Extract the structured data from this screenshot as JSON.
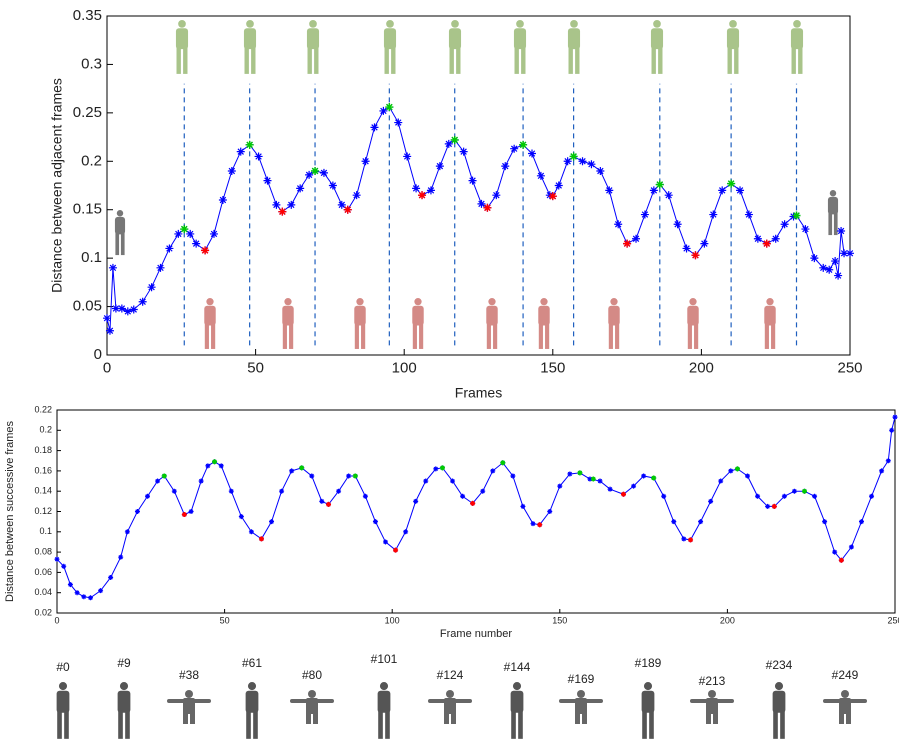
{
  "chart_data": [
    {
      "type": "line",
      "x_label": "Frames",
      "y_label": "Distance between adjacent frames",
      "x": [
        0,
        1,
        2,
        3,
        5,
        7,
        9,
        12,
        15,
        18,
        21,
        24,
        26,
        28,
        30,
        33,
        36,
        39,
        42,
        45,
        48,
        51,
        54,
        57,
        59,
        62,
        65,
        68,
        70,
        73,
        76,
        79,
        81,
        84,
        87,
        90,
        93,
        95,
        98,
        101,
        104,
        106,
        109,
        112,
        115,
        117,
        120,
        123,
        126,
        128,
        131,
        134,
        137,
        140,
        143,
        146,
        149,
        150,
        152,
        155,
        157,
        160,
        163,
        166,
        169,
        172,
        175,
        178,
        181,
        184,
        186,
        189,
        192,
        195,
        198,
        201,
        204,
        207,
        210,
        213,
        216,
        219,
        222,
        225,
        228,
        231,
        232,
        235,
        238,
        241,
        243,
        245,
        246,
        247,
        248,
        250
      ],
      "values": [
        0.038,
        0.025,
        0.09,
        0.048,
        0.048,
        0.045,
        0.047,
        0.055,
        0.07,
        0.09,
        0.11,
        0.125,
        0.13,
        0.125,
        0.115,
        0.108,
        0.125,
        0.16,
        0.19,
        0.21,
        0.217,
        0.205,
        0.18,
        0.155,
        0.148,
        0.155,
        0.172,
        0.186,
        0.19,
        0.188,
        0.175,
        0.155,
        0.15,
        0.165,
        0.2,
        0.235,
        0.252,
        0.256,
        0.24,
        0.205,
        0.172,
        0.165,
        0.17,
        0.195,
        0.218,
        0.222,
        0.21,
        0.18,
        0.156,
        0.152,
        0.165,
        0.195,
        0.213,
        0.217,
        0.208,
        0.185,
        0.165,
        0.164,
        0.175,
        0.2,
        0.205,
        0.2,
        0.197,
        0.19,
        0.17,
        0.135,
        0.115,
        0.12,
        0.145,
        0.17,
        0.176,
        0.165,
        0.135,
        0.11,
        0.103,
        0.115,
        0.145,
        0.17,
        0.177,
        0.17,
        0.145,
        0.12,
        0.115,
        0.12,
        0.135,
        0.143,
        0.144,
        0.13,
        0.1,
        0.09,
        0.088,
        0.097,
        0.082,
        0.128,
        0.105,
        0.105
      ],
      "color": "#0000ff",
      "peaks": {
        "color": "#00cc00",
        "x": [
          26,
          48,
          70,
          95,
          117,
          140,
          157,
          186,
          210,
          232
        ],
        "values": [
          0.13,
          0.217,
          0.19,
          0.256,
          0.222,
          0.217,
          0.205,
          0.176,
          0.177,
          0.144
        ]
      },
      "valleys": {
        "color": "#ff0000",
        "x": [
          33,
          59,
          81,
          106,
          128,
          150,
          175,
          198,
          222
        ],
        "values": [
          0.108,
          0.148,
          0.15,
          0.165,
          0.152,
          0.164,
          0.115,
          0.103,
          0.115
        ]
      },
      "peak_lines": true,
      "xlim": [
        0,
        250
      ],
      "xticks": [
        0,
        50,
        100,
        150,
        200,
        250
      ],
      "ylim": [
        0,
        0.35
      ],
      "yticks": [
        0,
        0.05,
        0.1,
        0.15,
        0.2,
        0.25,
        0.3,
        0.35
      ]
    },
    {
      "type": "line",
      "x_label": "Frame number",
      "y_label": "Distance between successive frames",
      "x": [
        0,
        2,
        4,
        6,
        8,
        10,
        13,
        16,
        19,
        21,
        24,
        27,
        30,
        32,
        35,
        38,
        40,
        43,
        45,
        47,
        49,
        52,
        55,
        58,
        61,
        64,
        67,
        70,
        73,
        76,
        79,
        81,
        84,
        87,
        89,
        92,
        95,
        98,
        101,
        104,
        107,
        110,
        113,
        115,
        118,
        121,
        124,
        127,
        130,
        133,
        136,
        139,
        142,
        144,
        147,
        150,
        153,
        156,
        159,
        162,
        165,
        169,
        172,
        175,
        178,
        181,
        184,
        187,
        189,
        192,
        195,
        198,
        201,
        203,
        206,
        209,
        212,
        214,
        217,
        220,
        223,
        226,
        229,
        232,
        234,
        237,
        240,
        243,
        246,
        248,
        249,
        250
      ],
      "values": [
        0.073,
        0.066,
        0.048,
        0.04,
        0.036,
        0.035,
        0.042,
        0.055,
        0.075,
        0.1,
        0.12,
        0.135,
        0.15,
        0.155,
        0.14,
        0.117,
        0.12,
        0.15,
        0.165,
        0.169,
        0.165,
        0.14,
        0.115,
        0.1,
        0.093,
        0.11,
        0.14,
        0.16,
        0.163,
        0.155,
        0.13,
        0.127,
        0.14,
        0.155,
        0.155,
        0.135,
        0.11,
        0.09,
        0.082,
        0.1,
        0.13,
        0.15,
        0.162,
        0.163,
        0.15,
        0.135,
        0.128,
        0.14,
        0.16,
        0.168,
        0.155,
        0.125,
        0.108,
        0.107,
        0.12,
        0.145,
        0.157,
        0.158,
        0.152,
        0.15,
        0.142,
        0.137,
        0.145,
        0.155,
        0.153,
        0.135,
        0.11,
        0.093,
        0.092,
        0.11,
        0.13,
        0.15,
        0.16,
        0.162,
        0.155,
        0.135,
        0.125,
        0.125,
        0.135,
        0.14,
        0.14,
        0.135,
        0.11,
        0.08,
        0.072,
        0.085,
        0.11,
        0.135,
        0.16,
        0.17,
        0.2,
        0.213
      ],
      "color": "#0000ff",
      "peaks": {
        "color": "#00cc00",
        "x": [
          32,
          47,
          73,
          89,
          115,
          133,
          156,
          160,
          178,
          203,
          223
        ],
        "values": [
          0.155,
          0.169,
          0.163,
          0.155,
          0.163,
          0.168,
          0.158,
          0.152,
          0.153,
          0.162,
          0.14
        ]
      },
      "valleys": {
        "color": "#ff0000",
        "x": [
          38,
          61,
          81,
          101,
          124,
          144,
          169,
          189,
          214,
          234
        ],
        "values": [
          0.117,
          0.093,
          0.127,
          0.082,
          0.128,
          0.107,
          0.137,
          0.092,
          0.125,
          0.072
        ]
      },
      "peak_lines": false,
      "xlim": [
        0,
        250
      ],
      "xticks": [
        0,
        50,
        100,
        150,
        200,
        250
      ],
      "ylim": [
        0.02,
        0.22
      ],
      "yticks": [
        0.02,
        0.04,
        0.06,
        0.08,
        0.1,
        0.12,
        0.14,
        0.16,
        0.18,
        0.2,
        0.22
      ],
      "annotations": [
        "#0",
        "#9",
        "#38",
        "#61",
        "#80",
        "#101",
        "#124",
        "#144",
        "#169",
        "#189",
        "#213",
        "#234",
        "#249"
      ]
    }
  ]
}
